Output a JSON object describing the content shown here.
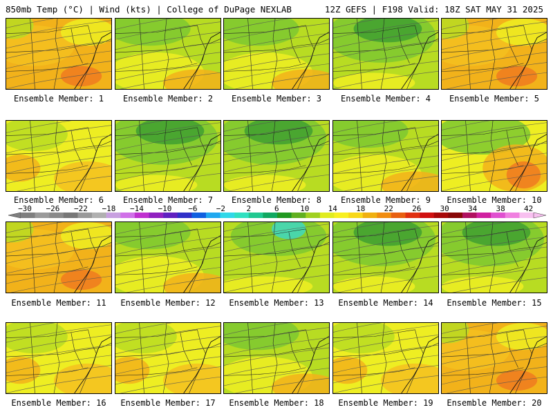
{
  "header": {
    "left": "850mb Temp (°C) | Wind (kts) | College of DuPage NEXLAB",
    "right": "12Z GEFS | F198 Valid: 18Z SAT MAY 31 2025"
  },
  "caption_prefix": "Ensemble Member: ",
  "members": [
    {
      "number": 1,
      "label": "Ensemble Member: 1",
      "scheme": "warm"
    },
    {
      "number": 2,
      "label": "Ensemble Member: 2",
      "scheme": "mid"
    },
    {
      "number": 3,
      "label": "Ensemble Member: 3",
      "scheme": "mid"
    },
    {
      "number": 4,
      "label": "Ensemble Member: 4",
      "scheme": "cool"
    },
    {
      "number": 5,
      "label": "Ensemble Member: 5",
      "scheme": "warm"
    },
    {
      "number": 6,
      "label": "Ensemble Member: 6",
      "scheme": "yellow"
    },
    {
      "number": 7,
      "label": "Ensemble Member: 7",
      "scheme": "cool"
    },
    {
      "number": 8,
      "label": "Ensemble Member: 8",
      "scheme": "cool"
    },
    {
      "number": 9,
      "label": "Ensemble Member: 9",
      "scheme": "mid"
    },
    {
      "number": 10,
      "label": "Ensemble Member: 10",
      "scheme": "hot"
    },
    {
      "number": 11,
      "label": "Ensemble Member: 11",
      "scheme": "warm"
    },
    {
      "number": 12,
      "label": "Ensemble Member: 12",
      "scheme": "mid"
    },
    {
      "number": 13,
      "label": "Ensemble Member: 13",
      "scheme": "cyan"
    },
    {
      "number": 14,
      "label": "Ensemble Member: 14",
      "scheme": "cool"
    },
    {
      "number": 15,
      "label": "Ensemble Member: 15",
      "scheme": "cool"
    },
    {
      "number": 16,
      "label": "Ensemble Member: 16",
      "scheme": "yellow"
    },
    {
      "number": 17,
      "label": "Ensemble Member: 17",
      "scheme": "yellow"
    },
    {
      "number": 18,
      "label": "Ensemble Member: 18",
      "scheme": "mid"
    },
    {
      "number": 19,
      "label": "Ensemble Member: 19",
      "scheme": "yellow"
    },
    {
      "number": 20,
      "label": "Ensemble Member: 20",
      "scheme": "warm"
    }
  ],
  "colorbar": {
    "labels": [
      "-30",
      "-26",
      "-22",
      "-18",
      "-14",
      "-10",
      "-6",
      "-2",
      "2",
      "6",
      "10",
      "14",
      "18",
      "22",
      "26",
      "30",
      "34",
      "38",
      "42"
    ],
    "colors": [
      "#7f7f7f",
      "#9a9a9a",
      "#8a8a8a",
      "#777777",
      "#999999",
      "#b0b0b0",
      "#c8a0e0",
      "#d070e8",
      "#c030d0",
      "#9020c0",
      "#6020c0",
      "#3030c8",
      "#1060e0",
      "#20a8f0",
      "#30d8e8",
      "#30e0c0",
      "#20c890",
      "#10a860",
      "#209820",
      "#60b020",
      "#a0d020",
      "#e0ec20",
      "#f8f020",
      "#f8d818",
      "#f0b010",
      "#f08c10",
      "#e86010",
      "#e03010",
      "#d01010",
      "#a80808",
      "#880808",
      "#b01060",
      "#d020a0",
      "#e050d0",
      "#f080e0",
      "#f8c0f0"
    ]
  },
  "fill_colors": {
    "hot": "#f07a20",
    "warm": "#f2b21a",
    "orange": "#f4c020",
    "yellow": "#eeee22",
    "lime": "#b8dc22",
    "green": "#7cc830",
    "dkgreen": "#40a030",
    "cyan": "#40d8c0"
  }
}
